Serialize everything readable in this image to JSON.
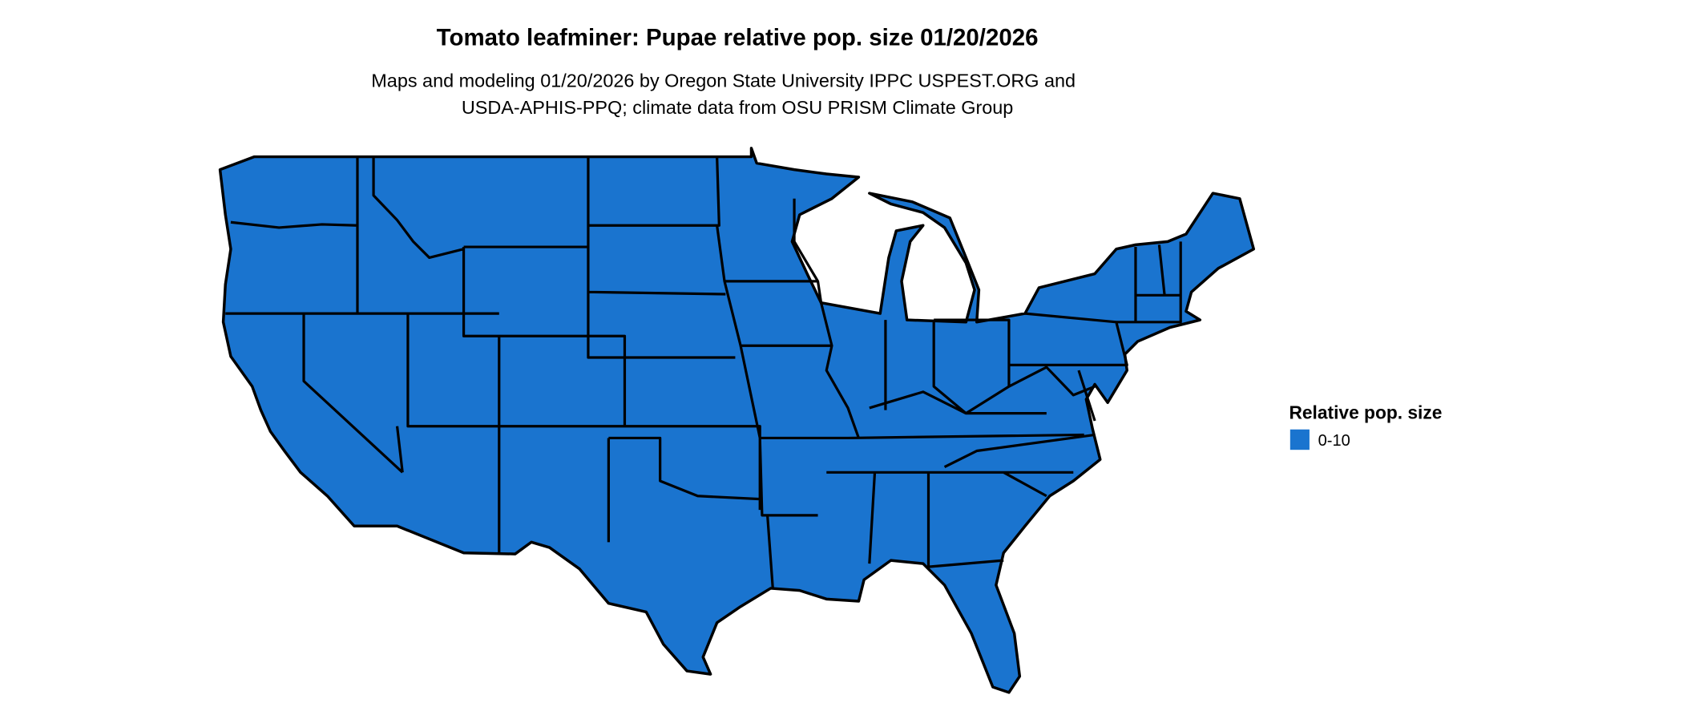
{
  "chart_data": {
    "type": "map",
    "title": "Tomato leafminer: Pupae relative pop. size 01/20/2026",
    "subtitle_lines": [
      "Maps and modeling 01/20/2026 by Oregon State University IPPC USPEST.ORG and",
      "USDA-APHIS-PPQ; climate data from OSU PRISM Climate Group"
    ],
    "region": "Contiguous United States",
    "legend": {
      "title": "Relative pop. size",
      "position": "right",
      "entries": [
        {
          "label": "0-10",
          "color": "#1a74cf"
        }
      ]
    },
    "fill_value_everywhere": "0-10"
  }
}
